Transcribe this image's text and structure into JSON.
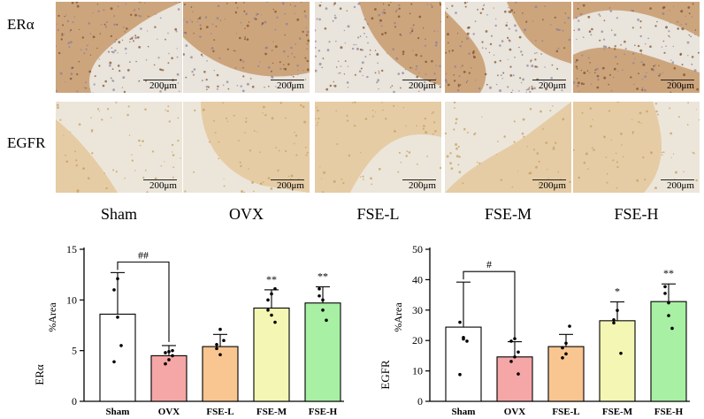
{
  "panels": {
    "rows": [
      {
        "label": "ERα",
        "tint": "er"
      },
      {
        "label": "EGFR",
        "tint": "eg"
      }
    ],
    "groups": [
      "Sham",
      "OVX",
      "FSE-L",
      "FSE-M",
      "FSE-H"
    ],
    "scale_label": "200μm"
  },
  "chart_data": [
    {
      "type": "bar",
      "ylabel_marker": "ERα",
      "ylabel": "%Area",
      "ylim": [
        0,
        15
      ],
      "yticks": [
        0,
        5,
        10,
        15
      ],
      "categories": [
        "Sham",
        "OVX",
        "FSE-L",
        "FSE-M",
        "FSE-H"
      ],
      "values": [
        8.6,
        4.5,
        5.4,
        9.2,
        9.7
      ],
      "errors": [
        4.1,
        1.0,
        1.2,
        1.8,
        1.6
      ],
      "points": [
        [
          11.0,
          8.3,
          5.5,
          3.9,
          12.1
        ],
        [
          4.8,
          4.1,
          5.0,
          3.7,
          4.9,
          4.5
        ],
        [
          5.6,
          4.6,
          6.0,
          5.2,
          7.1
        ],
        [
          9.0,
          10.6,
          7.8,
          10.0,
          8.5,
          11.1
        ],
        [
          11.1,
          9.0,
          8.0,
          10.4,
          10.0
        ]
      ],
      "colors": [
        "#ffffff",
        "#f5a6a6",
        "#f9c590",
        "#f4f7b4",
        "#a8f0a3"
      ],
      "annotations": {
        "bracket": "##",
        "stars": [
          "",
          "",
          "",
          "**",
          "**"
        ]
      }
    },
    {
      "type": "bar",
      "ylabel_marker": "EGFR",
      "ylabel": "%Area",
      "ylim": [
        0,
        50
      ],
      "yticks": [
        0,
        10,
        20,
        30,
        40,
        50
      ],
      "categories": [
        "Sham",
        "OVX",
        "FSE-L",
        "FSE-M",
        "FSE-H"
      ],
      "values": [
        24.4,
        14.6,
        18.0,
        26.5,
        32.8
      ],
      "errors": [
        14.8,
        5.0,
        4.0,
        6.2,
        5.8
      ],
      "points": [
        [
          26.0,
          20.5,
          19.8,
          8.8,
          21.0
        ],
        [
          19.8,
          14.6,
          9.0,
          13.1,
          20.6,
          16.2
        ],
        [
          17.6,
          19.1,
          24.7,
          14.3,
          15.6
        ],
        [
          25.8,
          29.9,
          15.8,
          26.8
        ],
        [
          35.5,
          28.2,
          24.0,
          37.7,
          32.4
        ]
      ],
      "colors": [
        "#ffffff",
        "#f5a6a6",
        "#f9c590",
        "#f4f7b4",
        "#a8f0a3"
      ],
      "annotations": {
        "bracket": "#",
        "stars": [
          "",
          "",
          "",
          "*",
          "**"
        ]
      }
    }
  ]
}
